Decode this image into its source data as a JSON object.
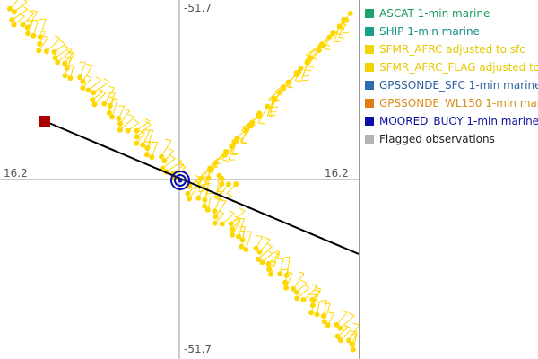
{
  "axes": {
    "top_label": "-51.7",
    "bottom_label": "-51.7",
    "left_label": "16.2",
    "right_label": "16.2"
  },
  "legend": {
    "items": [
      {
        "label": "ASCAT 1-min marine",
        "color": "#1aa36a",
        "text_color": "#1a9a5a"
      },
      {
        "label": "SHIP 1-min marine",
        "color": "#17a08a",
        "text_color": "#139080"
      },
      {
        "label": "SFMR_AFRC adjusted to sfc",
        "color": "#f2d500",
        "text_color": "#e6c800"
      },
      {
        "label": "SFMR_AFRC_FLAG adjusted to",
        "color": "#f2d500",
        "text_color": "#e6c800"
      },
      {
        "label": "GPSSONDE_SFC 1-min marine",
        "color": "#2b6cb0",
        "text_color": "#2b5fa0"
      },
      {
        "label": "GPSSONDE_WL150 1-min mar",
        "color": "#e07d10",
        "text_color": "#d98c1a"
      },
      {
        "label": "MOORED_BUOY 1-min marine",
        "color": "#0a10a8",
        "text_color": "#1010a0"
      },
      {
        "label": "Flagged observations",
        "color": "#b3b3b3",
        "text_color": "#222222"
      }
    ]
  },
  "colors": {
    "observation": "#ffd700",
    "track": "#000000",
    "track_start": "#aa0000",
    "center": "#0a10a8"
  }
}
